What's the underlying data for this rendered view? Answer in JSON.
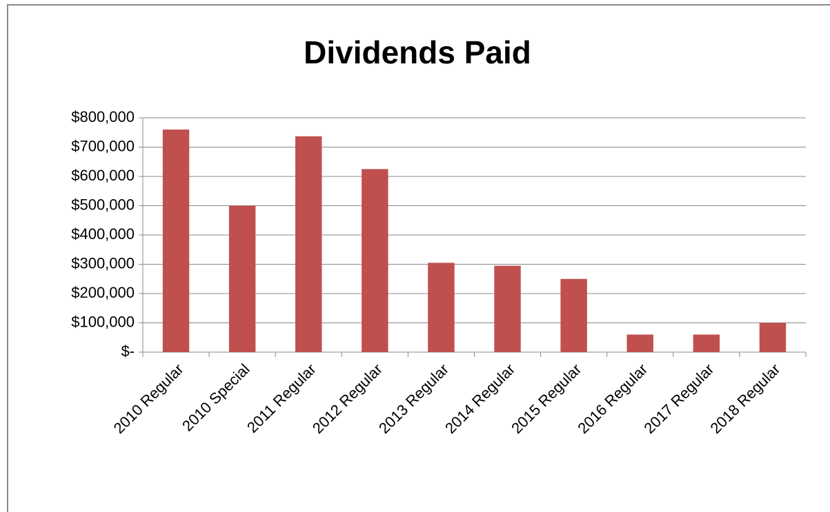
{
  "chart_data": {
    "type": "bar",
    "title": "Dividends Paid",
    "categories": [
      "2010 Regular",
      "2010 Special",
      "2011 Regular",
      "2012 Regular",
      "2013 Regular",
      "2014 Regular",
      "2015 Regular",
      "2016 Regular",
      "2017 Regular",
      "2018 Regular"
    ],
    "values": [
      760000,
      500000,
      737000,
      625000,
      305000,
      295000,
      250000,
      60000,
      60000,
      100000
    ],
    "color": "#c0504d",
    "ylim": [
      0,
      800000
    ],
    "yticks": [
      {
        "value": 0,
        "label": "$-"
      },
      {
        "value": 100000,
        "label": "$100,000"
      },
      {
        "value": 200000,
        "label": "$200,000"
      },
      {
        "value": 300000,
        "label": "$300,000"
      },
      {
        "value": 400000,
        "label": "$400,000"
      },
      {
        "value": 500000,
        "label": "$500,000"
      },
      {
        "value": 600000,
        "label": "$600,000"
      },
      {
        "value": 700000,
        "label": "$700,000"
      },
      {
        "value": 800000,
        "label": "$800,000"
      }
    ],
    "grid": true
  }
}
